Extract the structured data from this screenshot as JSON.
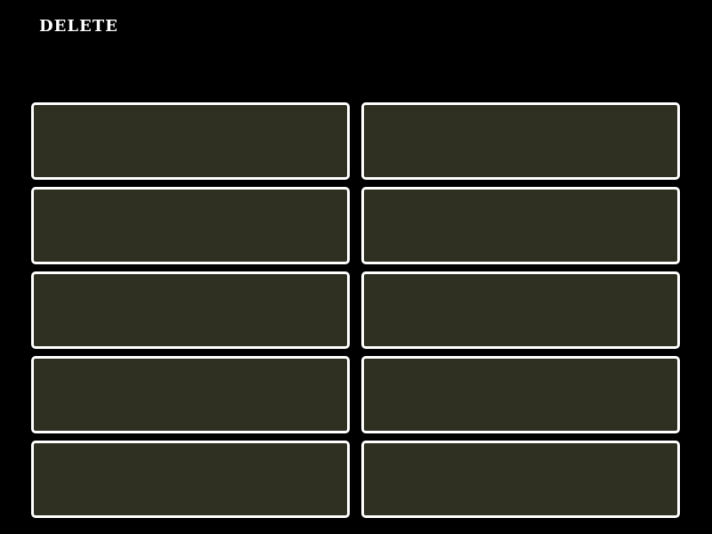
{
  "title": "DELETE",
  "slot_fill_color": "#303022",
  "slots": [
    {
      "row": 1,
      "col": 1
    },
    {
      "row": 1,
      "col": 2
    },
    {
      "row": 2,
      "col": 1
    },
    {
      "row": 2,
      "col": 2
    },
    {
      "row": 3,
      "col": 1
    },
    {
      "row": 3,
      "col": 2
    },
    {
      "row": 4,
      "col": 1
    },
    {
      "row": 4,
      "col": 2
    },
    {
      "row": 5,
      "col": 1
    },
    {
      "row": 5,
      "col": 2
    }
  ]
}
